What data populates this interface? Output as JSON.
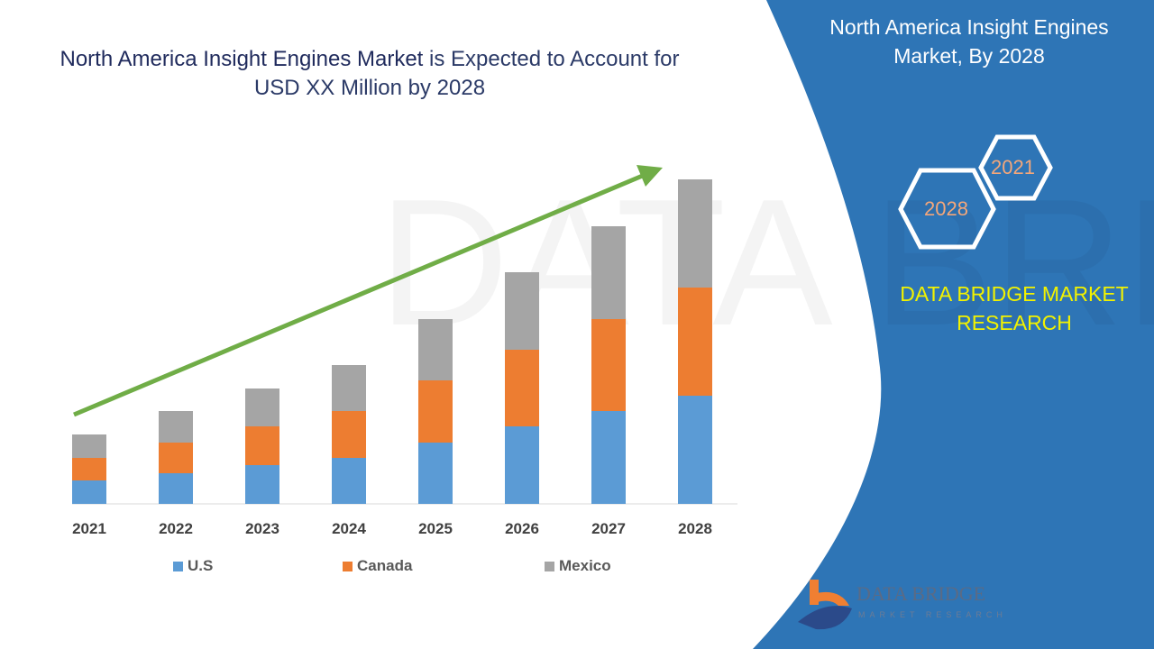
{
  "title_main": "North America Insight Engines Market",
  "title_rest": " is Expected to Account for USD XX Million by 2028",
  "panel": {
    "title": "North America Insight Engines Market, By 2028",
    "hex_years": [
      "2021",
      "2028"
    ],
    "brand": "DATA BRIDGE MARKET RESEARCH",
    "logo_text": "DATA BRIDGE",
    "logo_sub": "MARKET RESEARCH",
    "color": "#2e75b6"
  },
  "chart_data": {
    "type": "bar",
    "stacked": true,
    "categories": [
      "2021",
      "2022",
      "2023",
      "2024",
      "2025",
      "2026",
      "2027",
      "2028"
    ],
    "series": [
      {
        "name": "U.S",
        "color": "#5b9bd5",
        "values": [
          26,
          34,
          43,
          51,
          68,
          86,
          103,
          120
        ]
      },
      {
        "name": "Canada",
        "color": "#ed7d31",
        "values": [
          25,
          34,
          43,
          52,
          69,
          85,
          102,
          120
        ]
      },
      {
        "name": "Mexico",
        "color": "#a5a5a5",
        "values": [
          26,
          35,
          42,
          51,
          68,
          86,
          103,
          120
        ]
      }
    ],
    "title": "",
    "xlabel": "",
    "ylabel": "",
    "grid": false,
    "legend": "bottom",
    "trend_arrow_color": "#70ad47"
  }
}
